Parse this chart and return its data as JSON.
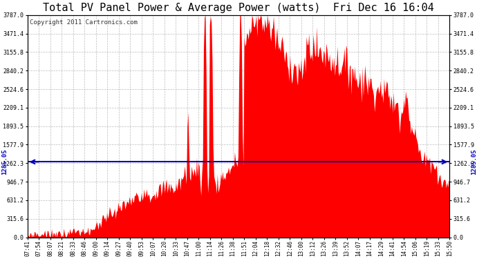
{
  "title": "Total PV Panel Power & Average Power (watts)  Fri Dec 16 16:04",
  "copyright": "Copyright 2011 Cartronics.com",
  "average_line_value": 1285.05,
  "yticks": [
    0.0,
    315.6,
    631.2,
    946.7,
    1262.3,
    1577.9,
    1893.5,
    2209.1,
    2524.6,
    2840.2,
    3155.8,
    3471.4,
    3787.0
  ],
  "ymax": 3787.0,
  "bar_color": "#FF0000",
  "line_color": "#0000BB",
  "bg_color": "#FFFFFF",
  "grid_color": "#AAAAAA",
  "title_fontsize": 11,
  "copyright_fontsize": 6.5,
  "xtick_labels": [
    "07:41",
    "07:54",
    "08:07",
    "08:21",
    "08:33",
    "08:46",
    "09:00",
    "09:14",
    "09:27",
    "09:40",
    "09:53",
    "10:07",
    "10:20",
    "10:33",
    "10:47",
    "11:00",
    "11:14",
    "11:26",
    "11:38",
    "11:51",
    "12:04",
    "12:18",
    "12:32",
    "12:46",
    "13:00",
    "13:12",
    "13:26",
    "13:39",
    "13:52",
    "14:07",
    "14:17",
    "14:29",
    "14:41",
    "14:54",
    "15:06",
    "15:19",
    "15:33",
    "15:50"
  ],
  "n_xticks": 38
}
